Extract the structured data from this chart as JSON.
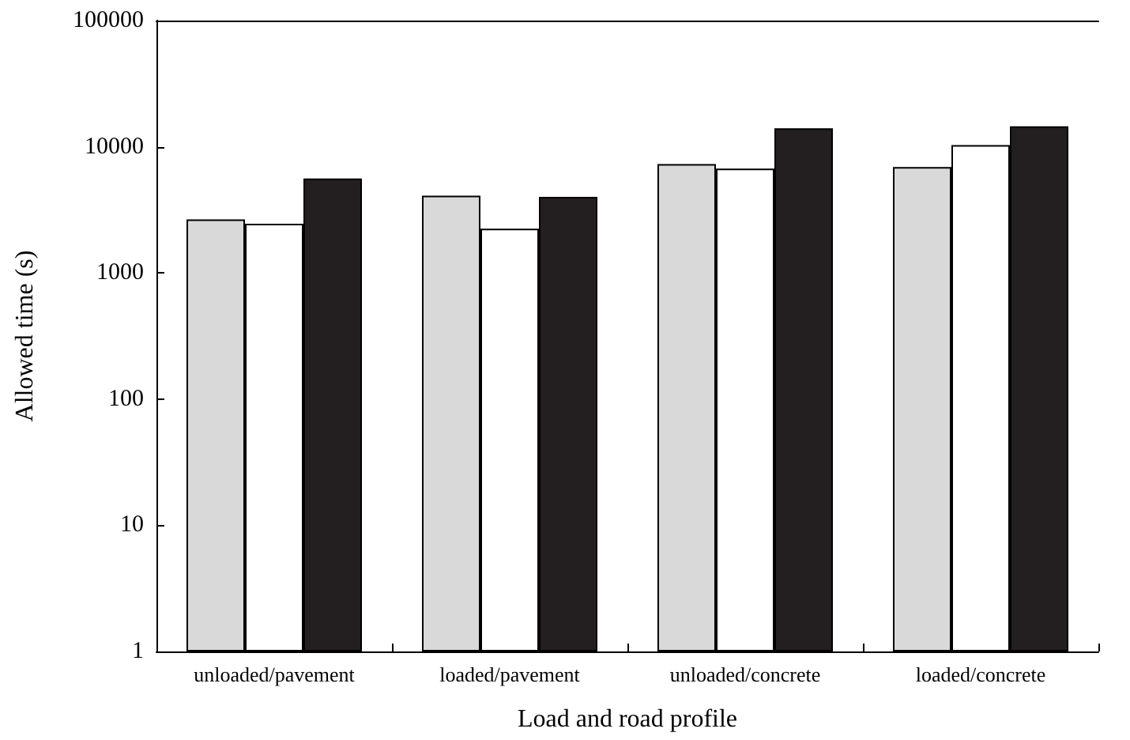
{
  "chart_data": {
    "type": "bar",
    "xlabel": "Load and road profile",
    "ylabel": "Allowed time (s)",
    "categories": [
      "unloaded/pavement",
      "loaded/pavement",
      "unloaded/concrete",
      "loaded/concrete"
    ],
    "series": [
      {
        "color": "#d9d9d9",
        "values": [
          2660,
          4100,
          7300,
          6900
        ]
      },
      {
        "color": "#ffffff",
        "values": [
          2450,
          2240,
          6700,
          10300
        ]
      },
      {
        "color": "#231f20",
        "values": [
          5600,
          4000,
          14000,
          14500
        ]
      }
    ],
    "log": "y",
    "ylim": [
      1,
      100000
    ],
    "yticks": [
      1,
      10,
      100,
      1000,
      10000,
      100000
    ],
    "grid": false
  }
}
